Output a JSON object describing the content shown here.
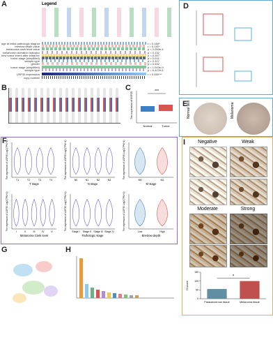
{
  "panels": {
    "A": {
      "letter": "A",
      "legend_title": "Legend",
      "rows": [
        "age at initial pathologic diagnosis",
        "breslow depth value",
        "melanoma clark level value",
        "melanoma ulceration indicator",
        "new tumor event after initial treatment",
        "tumor stage (simplified)",
        "sample type",
        "gender",
        "tumor stage (simplified)",
        "sample type"
      ],
      "stats": [
        "r = 0.184*",
        "r = 0.116*",
        "p = 2.050e-4",
        "p = 0.132",
        "p = 0.247",
        "p = 0.011",
        "p = 0.317",
        "p = 0.442",
        "p = 1.043e-9",
        "p = 6.427e-4"
      ],
      "bottom_rows": [
        "USP35 expression",
        "copy number"
      ],
      "bottom_stat": "r = 0.550***"
    },
    "B": {
      "letter": "B"
    },
    "C": {
      "letter": "C",
      "ylabel": "The expression of USP35",
      "categories": [
        "Normal",
        "Tumor"
      ],
      "sig": "***"
    },
    "D": {
      "letter": "D"
    },
    "E": {
      "letter": "E",
      "labels": [
        "Normal skin",
        "Melanoma"
      ]
    },
    "F": {
      "letter": "F",
      "ylabel": "The expression of USP35 Log2(TPM+1)",
      "plots": [
        {
          "xlabel": "T stage",
          "categories": [
            "T1",
            "T2",
            "T3",
            "T4"
          ]
        },
        {
          "xlabel": "N stage",
          "categories": [
            "N0",
            "N1",
            "N2",
            "N3"
          ]
        },
        {
          "xlabel": "M stage",
          "categories": [
            "M0",
            "M1"
          ]
        },
        {
          "xlabel": "Melanoma Clark level",
          "categories": [
            "I",
            "II",
            "III",
            "IV",
            "V"
          ]
        },
        {
          "xlabel": "Pathologic stage",
          "categories": [
            "Stage I",
            "Stage II",
            "Stage III",
            "Stage IV"
          ]
        },
        {
          "xlabel": "Breslow depth",
          "categories": [
            "Low",
            "High"
          ]
        }
      ]
    },
    "G": {
      "letter": "G"
    },
    "H": {
      "letter": "H"
    },
    "I": {
      "letter": "I",
      "grades": [
        "Negative",
        "Weak",
        "Moderate",
        "Strong"
      ]
    }
  },
  "chart_data": {
    "type": "bar",
    "ylabel": "H-score",
    "categories": [
      "Paracancerous tissue",
      "Melanoma tissue"
    ],
    "values": [
      55,
      100
    ],
    "colors": [
      "#5f8fa0",
      "#c0504d"
    ],
    "ylim": [
      0,
      150
    ],
    "yticks": [
      0,
      50,
      100,
      150
    ],
    "annotation": "*"
  }
}
